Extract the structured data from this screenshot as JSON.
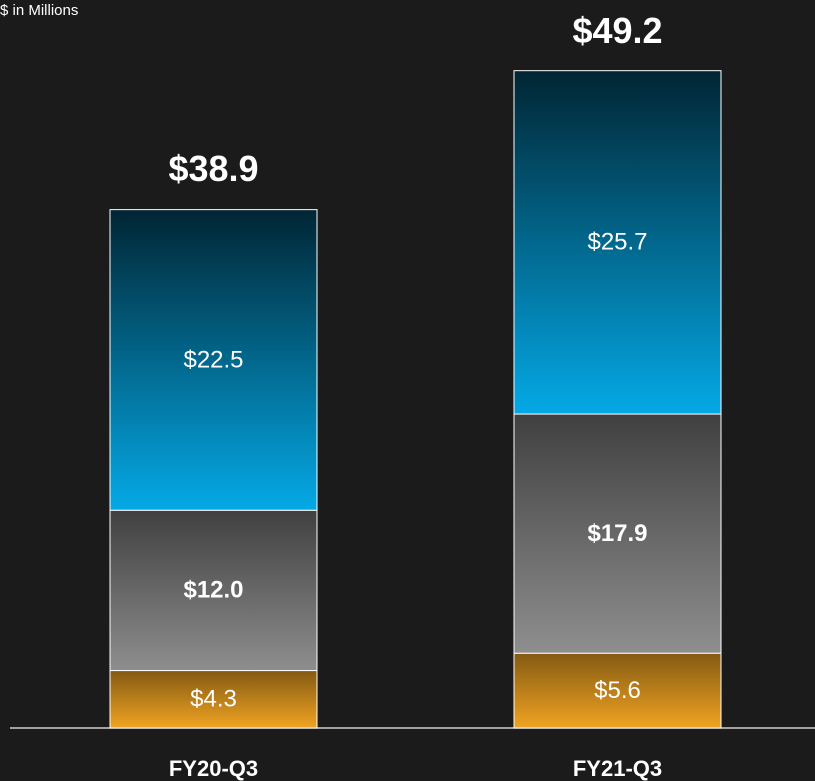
{
  "chart_data": {
    "type": "stacked-bar",
    "subtitle": "$ in Millions",
    "categories": [
      "FY20-Q3",
      "FY21-Q3"
    ],
    "series": [
      {
        "color": "#f0a322",
        "values": [
          4.3,
          5.6
        ],
        "value_labels": [
          "$4.3",
          "$5.6"
        ]
      },
      {
        "color": "#8e8e8e",
        "values": [
          12.0,
          17.9
        ],
        "value_labels": [
          "$12.0",
          "$17.9"
        ]
      },
      {
        "color": "#04a9e6",
        "values": [
          22.5,
          25.7
        ],
        "value_labels": [
          "$22.5",
          "$25.7"
        ]
      }
    ],
    "totals": [
      38.9,
      49.2
    ],
    "total_labels": [
      "$38.9",
      "$49.2"
    ]
  }
}
